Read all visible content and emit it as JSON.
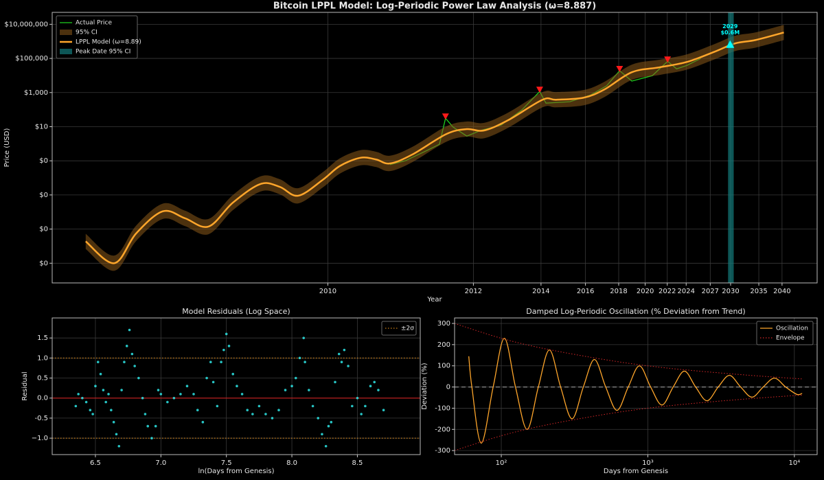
{
  "chart_data": [
    {
      "type": "line",
      "title": "Bitcoin LPPL Model: Log-Periodic Power Law Analysis (ω=8.887)",
      "x_label": "Year",
      "y_label": "Price (USD)",
      "xscale": "log",
      "yscale": "log",
      "grid": true,
      "legend": "upper left",
      "xlim": [
        45,
        14765
      ],
      "ylim": [
        7e-09,
        50000000.0
      ],
      "xticks": [
        {
          "value": 363,
          "label": "2010"
        },
        {
          "value": 1093,
          "label": "2012"
        },
        {
          "value": 1824,
          "label": "2014"
        },
        {
          "value": 2554,
          "label": "2016"
        },
        {
          "value": 3285,
          "label": "2018"
        },
        {
          "value": 4015,
          "label": "2020"
        },
        {
          "value": 4746,
          "label": "2022"
        },
        {
          "value": 5476,
          "label": "2024"
        },
        {
          "value": 6571,
          "label": "2027"
        },
        {
          "value": 7667,
          "label": "2030"
        },
        {
          "value": 9493,
          "label": "2035"
        },
        {
          "value": 11319,
          "label": "2040"
        }
      ],
      "yticks": [
        {
          "value": 10000000.0,
          "label": "$10,000,000"
        },
        {
          "value": 100000.0,
          "label": "$100,000"
        },
        {
          "value": 1000,
          "label": "$1,000"
        },
        {
          "value": 10,
          "label": "$10"
        },
        {
          "value": 0.1,
          "label": "$0"
        },
        {
          "value": 0.001,
          "label": "$0"
        },
        {
          "value": 1e-05,
          "label": "$0"
        },
        {
          "value": 1e-07,
          "label": "$0"
        }
      ],
      "series": [
        {
          "name": "Actual Price",
          "color": "#1fd11f",
          "x": [
            581,
            652,
            761,
            845,
            885,
            937,
            1040,
            1154,
            1350,
            1577,
            1806,
            1894,
            2271,
            2656,
            3000,
            3308,
            3628,
            4240,
            4757,
            5093,
            5508,
            6110
          ],
          "values": [
            0.06,
            0.1,
            0.37,
            0.93,
            31,
            9.5,
            2.8,
            6,
            12.6,
            95,
            1150,
            240,
            290,
            720,
            2500,
            19000,
            4700,
            9800,
            68000,
            24500,
            39000,
            98000
          ]
        },
        {
          "name": "95% CI",
          "color": "#8a5a1a",
          "lower": [
            6.8e-07,
            3.6e-08,
            2e-06,
            3.9e-05,
            1.5e-05,
            5e-06,
            0.00013,
            0.0016,
            0.0011,
            0.00032,
            0.0027,
            0.0175,
            0.054,
            0.043,
            0.025,
            0.082,
            1.3,
            2.6,
            2.1,
            8.6,
            136,
            136,
            179,
            536,
            5500,
            10700,
            22000,
            87500,
            271000,
            430000,
            1180000
          ],
          "upper": [
            5.3e-06,
            2.8e-07,
            1.6e-05,
            0.00031,
            0.00012,
            3.9e-05,
            0.001,
            0.0123,
            0.0084,
            0.0025,
            0.0213,
            0.137,
            0.42,
            0.34,
            0.2,
            0.64,
            10.4,
            20,
            16.8,
            67,
            1060,
            1060,
            1400,
            4200,
            43400,
            84000,
            174000,
            686000,
            2130000,
            3360000,
            9240000
          ]
        },
        {
          "name": "LPPL Model (ω=8.89)",
          "color": "#ffa62b",
          "x": [
            58,
            72,
            85,
            104,
            123,
            147,
            177,
            218,
            252,
            290,
            349,
            397,
            464,
            523,
            581,
            687,
            890,
            1040,
            1185,
            1422,
            1845,
            2047,
            2519,
            2945,
            3628,
            4470,
            5508,
            6782,
            7935,
            9270,
            11475
          ],
          "values": [
            1.9e-06,
            1e-07,
            5.6e-06,
            0.00011,
            4.3e-05,
            1.4e-05,
            0.00036,
            0.0044,
            0.003,
            0.0009,
            0.0076,
            0.049,
            0.15,
            0.12,
            0.07,
            0.23,
            3.7,
            7.2,
            6,
            24,
            380,
            380,
            500,
            1500,
            15500,
            30000,
            62000,
            245000,
            760000,
            1200000,
            3300000
          ]
        },
        {
          "name": "Peak Date 95% CI",
          "color": "#127a7a",
          "x_range": [
            7520,
            7850
          ]
        }
      ],
      "peaks": {
        "color": "#ff1a1a",
        "x": [
          885,
          1806,
          3308,
          4757
        ],
        "values": [
          31,
          1150,
          19000,
          68000
        ]
      },
      "predicted_peak": {
        "color": "#00ffff",
        "x": 7640,
        "value": 600000,
        "year": "2029",
        "price": "$0.6M"
      }
    },
    {
      "type": "scatter",
      "title": "Model Residuals (Log Space)",
      "x_label": "ln(Days from Genesis)",
      "y_label": "Residual",
      "grid": true,
      "legend": "upper right",
      "xlim": [
        6.17,
        8.98
      ],
      "ylim": [
        -1.41,
        2.0
      ],
      "xticks": [
        6.5,
        {
          "value": 7,
          "label": "7.0"
        },
        7.5,
        {
          "value": 8,
          "label": "8.0"
        },
        8.5
      ],
      "yticks": [
        {
          "value": -1,
          "label": "−1.0"
        },
        -0.5,
        {
          "value": 0,
          "label": "0.0"
        },
        0.5,
        {
          "value": 1,
          "label": "1.0"
        },
        1.5
      ],
      "reference_line": {
        "value": 0,
        "color": "#e02020"
      },
      "sigma_lines": {
        "name": "±2σ",
        "color": "#ff9f1c",
        "dash": "dotted",
        "values": [
          1,
          -1
        ]
      },
      "points": {
        "color": "#2ee6e6",
        "x": [
          6.35,
          6.37,
          6.4,
          6.43,
          6.46,
          6.48,
          6.5,
          6.52,
          6.54,
          6.56,
          6.58,
          6.6,
          6.62,
          6.64,
          6.66,
          6.68,
          6.7,
          6.72,
          6.74,
          6.76,
          6.78,
          6.8,
          6.83,
          6.86,
          6.88,
          6.9,
          6.93,
          6.96,
          6.98,
          7.0,
          7.05,
          7.1,
          7.15,
          7.2,
          7.25,
          7.28,
          7.32,
          7.35,
          7.38,
          7.4,
          7.43,
          7.46,
          7.48,
          7.5,
          7.52,
          7.55,
          7.58,
          7.62,
          7.66,
          7.7,
          7.75,
          7.8,
          7.85,
          7.9,
          7.95,
          8.0,
          8.03,
          8.06,
          8.09,
          8.1,
          8.13,
          8.16,
          8.2,
          8.23,
          8.26,
          8.28,
          8.3,
          8.33,
          8.36,
          8.38,
          8.4,
          8.43,
          8.46,
          8.5,
          8.53,
          8.56,
          8.6,
          8.63,
          8.66,
          8.7
        ],
        "values": [
          -0.2,
          0.1,
          0.0,
          -0.1,
          -0.3,
          -0.4,
          0.3,
          0.9,
          0.6,
          0.2,
          -0.1,
          0.1,
          -0.3,
          -0.6,
          -0.9,
          -1.2,
          0.2,
          0.9,
          1.3,
          1.7,
          1.1,
          0.8,
          0.5,
          0.0,
          -0.4,
          -0.7,
          -1.0,
          -0.7,
          0.2,
          0.1,
          -0.1,
          0.0,
          0.1,
          0.3,
          0.1,
          -0.3,
          -0.6,
          0.5,
          0.9,
          0.4,
          -0.2,
          0.9,
          1.2,
          1.6,
          1.3,
          0.6,
          0.3,
          0.1,
          -0.3,
          -0.4,
          -0.2,
          -0.4,
          -0.5,
          -0.3,
          0.2,
          0.3,
          0.5,
          1.0,
          1.5,
          0.9,
          0.2,
          -0.2,
          -0.5,
          -0.9,
          -1.2,
          -0.7,
          -0.6,
          0.4,
          1.1,
          0.9,
          1.2,
          0.8,
          -0.2,
          0.0,
          -0.4,
          -0.2,
          0.3,
          0.4,
          0.2,
          -0.3
        ]
      }
    },
    {
      "type": "line",
      "title": "Damped Log-Periodic Oscillation (% Deviation from Trend)",
      "x_label": "Days from Genesis",
      "y_label": "Deviation (%)",
      "xscale": "log",
      "grid": true,
      "legend": "upper right",
      "xlim": [
        48,
        14300
      ],
      "ylim": [
        -319,
        326
      ],
      "xticks": [
        {
          "value": 100,
          "label": "10²"
        },
        {
          "value": 1000,
          "label": "10³"
        },
        {
          "value": 10000,
          "label": "10⁴"
        }
      ],
      "yticks": [
        -300,
        -200,
        -100,
        0,
        100,
        200,
        300
      ],
      "reference_line": {
        "value": 0,
        "color": "#aaaaaa"
      },
      "series": [
        {
          "name": "Oscillation",
          "color": "#ffa62b",
          "x": [
            60,
            63,
            73,
            88,
            105,
            125,
            150,
            179,
            213,
            254,
            304,
            363,
            432,
            516,
            616,
            735,
            876,
            1045,
            1248,
            1489,
            1777,
            2120,
            2532,
            3021,
            3604,
            4300,
            5135,
            6126,
            7309,
            8720,
            10413,
            11300
          ],
          "values": [
            145,
            0,
            -265,
            0,
            230,
            0,
            -200,
            0,
            175,
            0,
            -150,
            0,
            130,
            0,
            -110,
            0,
            100,
            0,
            -85,
            0,
            75,
            0,
            -65,
            0,
            55,
            0,
            -48,
            0,
            42,
            0,
            -35,
            -30
          ]
        },
        {
          "name": "Envelope",
          "color": "#d62728",
          "dash": "dotted",
          "x": [
            48,
            100,
            200,
            500,
            1000,
            2000,
            5000,
            11300
          ],
          "values": [
            300,
            230,
            180,
            130,
            100,
            78,
            55,
            38
          ],
          "lower": [
            -300,
            -230,
            -180,
            -130,
            -100,
            -78,
            -55,
            -38
          ]
        }
      ]
    }
  ]
}
